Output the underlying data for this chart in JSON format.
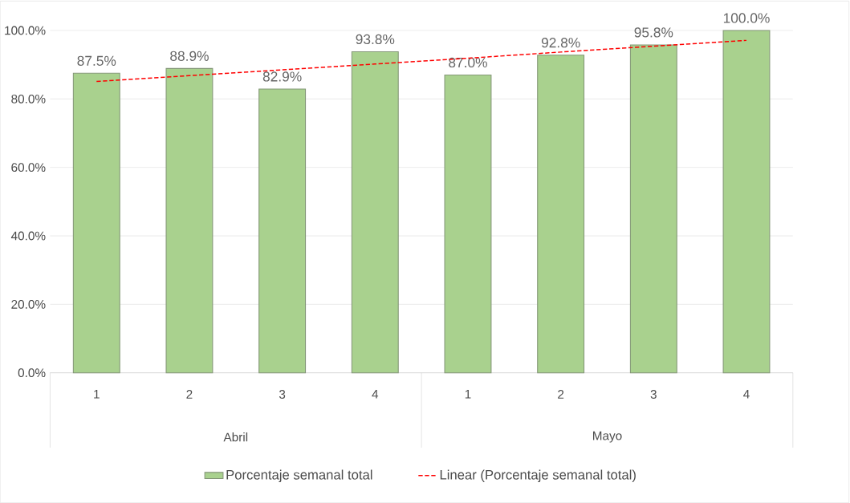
{
  "chart_data": {
    "type": "bar",
    "categories": [
      "1",
      "2",
      "3",
      "4",
      "1",
      "2",
      "3",
      "4"
    ],
    "series": [
      {
        "name": "Porcentaje semanal total",
        "color": "#a9d18e",
        "values": [
          87.5,
          88.9,
          82.9,
          93.8,
          87.0,
          92.8,
          95.8,
          100.0
        ],
        "value_labels": [
          "87.5%",
          "88.9%",
          "82.9%",
          "93.8%",
          "87.0%",
          "92.8%",
          "95.8%",
          "100.0%"
        ]
      },
      {
        "name": "Linear (Porcentaje semanal total)",
        "type": "line",
        "color": "#ff0000",
        "line_style": "dashed",
        "values": [
          85.1,
          86.8,
          88.5,
          90.2,
          91.9,
          93.7,
          95.4,
          97.1
        ]
      }
    ],
    "annotations": [
      "Abril",
      "Mayo"
    ],
    "ylim": [
      0,
      100
    ],
    "yticks": [
      {
        "value": 0,
        "label": "0.0%"
      },
      {
        "value": 20,
        "label": "20.0%"
      },
      {
        "value": 40,
        "label": "40.0%"
      },
      {
        "value": 60,
        "label": "60.0%"
      },
      {
        "value": 80,
        "label": "80.0%"
      },
      {
        "value": 100,
        "label": "100.0%"
      }
    ],
    "grid": "y",
    "legend": "bottom"
  }
}
